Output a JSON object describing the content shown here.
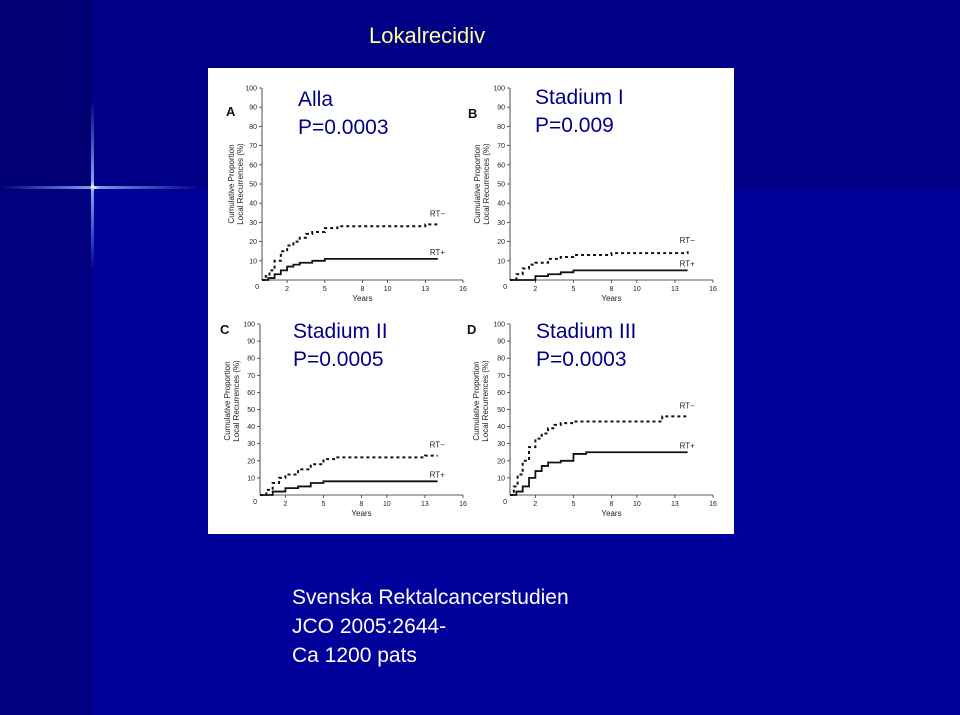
{
  "slide": {
    "title": "Lokalrecidiv",
    "source_lines": [
      "Svenska Rektalcancerstudien",
      "JCO 2005:2644-",
      "Ca 1200 pats"
    ]
  },
  "colors": {
    "background": "#00009a",
    "title": "#ffff99",
    "annotation": "#000088",
    "text": "#ffffff"
  },
  "chart_data": [
    {
      "type": "line",
      "panel": "A",
      "annotation": [
        "Alla",
        "P=0.0003"
      ],
      "ylabel": [
        "Cumulative Proportion",
        "Local Recurrences (%)"
      ],
      "xlabel": "Years",
      "xticks": [
        0,
        2,
        5,
        8,
        10,
        13,
        16
      ],
      "yticks": [
        10,
        20,
        30,
        40,
        50,
        60,
        70,
        80,
        90,
        100
      ],
      "xlim": [
        0,
        16
      ],
      "ylim": [
        0,
        100
      ],
      "series": [
        {
          "name": "RT−",
          "style": "dashed",
          "points": [
            [
              0,
              0
            ],
            [
              0.3,
              2
            ],
            [
              0.6,
              5
            ],
            [
              1,
              10
            ],
            [
              1.5,
              15
            ],
            [
              2,
              18
            ],
            [
              2.5,
              20
            ],
            [
              3,
              22
            ],
            [
              3.5,
              24
            ],
            [
              4,
              25
            ],
            [
              5,
              27
            ],
            [
              6,
              28
            ],
            [
              8,
              28
            ],
            [
              10,
              28
            ],
            [
              13,
              29
            ],
            [
              14,
              29
            ]
          ]
        },
        {
          "name": "RT+",
          "style": "solid",
          "points": [
            [
              0,
              0
            ],
            [
              0.5,
              1
            ],
            [
              1,
              3
            ],
            [
              1.5,
              5
            ],
            [
              2,
              7
            ],
            [
              2.5,
              8
            ],
            [
              3,
              9
            ],
            [
              4,
              10
            ],
            [
              5,
              11
            ],
            [
              6,
              11
            ],
            [
              8,
              11
            ],
            [
              10,
              11
            ],
            [
              12,
              11
            ],
            [
              14,
              11
            ]
          ]
        }
      ]
    },
    {
      "type": "line",
      "panel": "B",
      "annotation": [
        "Stadium I",
        "P=0.009"
      ],
      "ylabel": [
        "Cumulative Proportion",
        "Local Recurrences (%)"
      ],
      "xlabel": "Years",
      "xticks": [
        0,
        2,
        5,
        8,
        10,
        13,
        16
      ],
      "yticks": [
        10,
        20,
        30,
        40,
        50,
        60,
        70,
        80,
        90,
        100
      ],
      "xlim": [
        0,
        16
      ],
      "ylim": [
        0,
        100
      ],
      "series": [
        {
          "name": "RT−",
          "style": "dashed",
          "points": [
            [
              0,
              0
            ],
            [
              0.5,
              3
            ],
            [
              1,
              6
            ],
            [
              1.5,
              8
            ],
            [
              2,
              9
            ],
            [
              3,
              11
            ],
            [
              4,
              12
            ],
            [
              5,
              13
            ],
            [
              6,
              13
            ],
            [
              8,
              14
            ],
            [
              10,
              14
            ],
            [
              12,
              14
            ],
            [
              14,
              15
            ]
          ]
        },
        {
          "name": "RT+",
          "style": "solid",
          "points": [
            [
              0,
              0
            ],
            [
              1.5,
              0
            ],
            [
              2,
              2
            ],
            [
              3,
              3
            ],
            [
              4,
              4
            ],
            [
              5,
              5
            ],
            [
              8,
              5
            ],
            [
              10,
              5
            ],
            [
              12,
              5
            ],
            [
              14,
              5
            ]
          ]
        }
      ]
    },
    {
      "type": "line",
      "panel": "C",
      "annotation": [
        "Stadium II",
        "P=0.0005"
      ],
      "ylabel": [
        "Cumulative Proportion",
        "Local Recurrences (%)"
      ],
      "xlabel": "Years",
      "xticks": [
        0,
        2,
        5,
        8,
        10,
        13,
        16
      ],
      "yticks": [
        10,
        20,
        30,
        40,
        50,
        60,
        70,
        80,
        90,
        100
      ],
      "xlim": [
        0,
        16
      ],
      "ylim": [
        0,
        100
      ],
      "series": [
        {
          "name": "RT−",
          "style": "dashed",
          "points": [
            [
              0,
              0
            ],
            [
              0.5,
              3
            ],
            [
              1,
              7
            ],
            [
              1.5,
              10
            ],
            [
              2,
              12
            ],
            [
              3,
              15
            ],
            [
              4,
              18
            ],
            [
              5,
              21
            ],
            [
              6,
              22
            ],
            [
              8,
              22
            ],
            [
              10,
              22
            ],
            [
              12,
              22
            ],
            [
              13,
              23
            ],
            [
              14,
              23
            ]
          ]
        },
        {
          "name": "RT+",
          "style": "solid",
          "points": [
            [
              0,
              0
            ],
            [
              1,
              2
            ],
            [
              2,
              4
            ],
            [
              3,
              5
            ],
            [
              4,
              7
            ],
            [
              5,
              8
            ],
            [
              8,
              8
            ],
            [
              10,
              8
            ],
            [
              12,
              8
            ],
            [
              14,
              8
            ]
          ]
        }
      ]
    },
    {
      "type": "line",
      "panel": "D",
      "annotation": [
        "Stadium III",
        "P=0.0003"
      ],
      "ylabel": [
        "Cumulative Proportion",
        "Local Recurrences (%)"
      ],
      "xlabel": "Years",
      "xticks": [
        0,
        2,
        5,
        8,
        10,
        13,
        16
      ],
      "yticks": [
        10,
        20,
        30,
        40,
        50,
        60,
        70,
        80,
        90,
        100
      ],
      "xlim": [
        0,
        16
      ],
      "ylim": [
        0,
        100
      ],
      "series": [
        {
          "name": "RT−",
          "style": "dashed",
          "points": [
            [
              0,
              0
            ],
            [
              0.3,
              5
            ],
            [
              0.6,
              12
            ],
            [
              1,
              20
            ],
            [
              1.5,
              28
            ],
            [
              2,
              33
            ],
            [
              2.5,
              36
            ],
            [
              3,
              39
            ],
            [
              3.5,
              41
            ],
            [
              4,
              42
            ],
            [
              5,
              43
            ],
            [
              8,
              43
            ],
            [
              10,
              43
            ],
            [
              11,
              43
            ],
            [
              12,
              46
            ],
            [
              14,
              46
            ]
          ]
        },
        {
          "name": "RT+",
          "style": "solid",
          "points": [
            [
              0,
              0
            ],
            [
              0.5,
              2
            ],
            [
              1,
              5
            ],
            [
              1.5,
              10
            ],
            [
              2,
              14
            ],
            [
              2.5,
              17
            ],
            [
              3,
              19
            ],
            [
              4,
              20
            ],
            [
              5,
              24
            ],
            [
              6,
              25
            ],
            [
              8,
              25
            ],
            [
              10,
              25
            ],
            [
              12,
              25
            ],
            [
              14,
              25
            ]
          ]
        }
      ]
    }
  ]
}
